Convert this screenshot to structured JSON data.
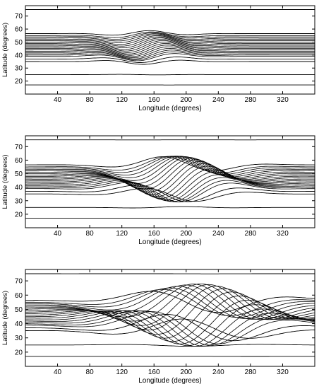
{
  "chart_data": [
    {
      "type": "line",
      "xlabel": "Longitude (degrees)",
      "ylabel": "Latitude (degrees)",
      "xlim": [
        0,
        360
      ],
      "ylim": [
        10,
        78
      ],
      "xticks": [
        40,
        80,
        120,
        160,
        200,
        240,
        280,
        320
      ],
      "yticks": [
        20,
        30,
        40,
        50,
        60,
        70
      ],
      "grid": false,
      "wave_center_lon": 150,
      "wave_halfwidth_lon": 55,
      "wave_amplitude_lat": 5
    },
    {
      "type": "line",
      "xlabel": "Longitude (degrees)",
      "ylabel": "Latitude (degrees)",
      "xlim": [
        0,
        360
      ],
      "ylim": [
        10,
        78
      ],
      "xticks": [
        40,
        80,
        120,
        160,
        200,
        240,
        280,
        320
      ],
      "yticks": [
        20,
        30,
        40,
        50,
        60,
        70
      ],
      "grid": false,
      "wave_center_lon": 190,
      "wave_halfwidth_lon": 75,
      "wave_amplitude_lat": 14
    },
    {
      "type": "line",
      "xlabel": "Longitude (degrees)",
      "ylabel": "Latitude (degrees)",
      "xlim": [
        0,
        360
      ],
      "ylim": [
        10,
        78
      ],
      "xticks": [
        40,
        80,
        120,
        160,
        200,
        240,
        280,
        320
      ],
      "yticks": [
        20,
        30,
        40,
        50,
        60,
        70
      ],
      "grid": false,
      "wave_center_lon": 215,
      "wave_halfwidth_lon": 100,
      "wave_amplitude_lat": 20
    }
  ]
}
